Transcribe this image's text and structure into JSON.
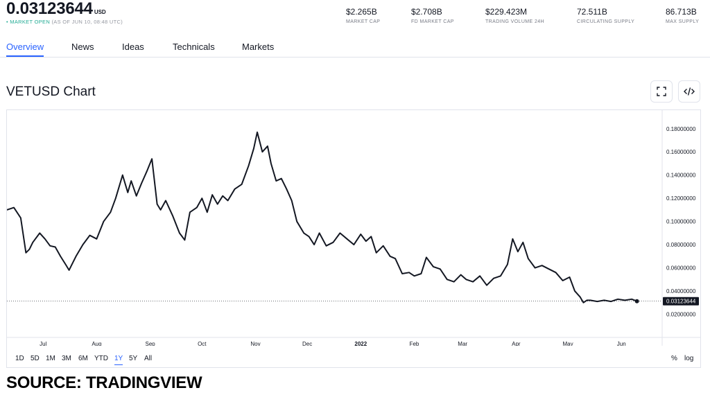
{
  "header": {
    "price": "0.03123644",
    "currency": "USD",
    "status_open": "• MARKET OPEN",
    "status_time": "(AS OF JUN 10, 08:48 UTC)",
    "stats": [
      {
        "value": "$2.265B",
        "label": "MARKET CAP"
      },
      {
        "value": "$2.708B",
        "label": "FD MARKET CAP"
      },
      {
        "value": "$229.423M",
        "label": "TRADING VOLUME 24H"
      },
      {
        "value": "72.511B",
        "label": "CIRCULATING SUPPLY"
      },
      {
        "value": "86.713B",
        "label": "MAX SUPPLY"
      }
    ]
  },
  "tabs": [
    "Overview",
    "News",
    "Ideas",
    "Technicals",
    "Markets"
  ],
  "active_tab": "Overview",
  "chart_title": "VETUSD Chart",
  "icons": {
    "fullscreen": "fullscreen-icon",
    "embed": "code-embed-icon"
  },
  "ranges": [
    "1D",
    "5D",
    "1M",
    "3M",
    "6M",
    "YTD",
    "1Y",
    "5Y",
    "All"
  ],
  "active_range": "1Y",
  "scale_options": [
    "%",
    "log"
  ],
  "source_text": "SOURCE: TRADINGVIEW",
  "colors": {
    "line": "#131722",
    "accent": "#2962ff",
    "market_open": "#22ab94",
    "last_price_tag": "#131722"
  },
  "chart_data": {
    "type": "line",
    "title": "VETUSD Chart",
    "series": [
      {
        "x": [
          "2021-06-10",
          "2021-06-14",
          "2021-06-18",
          "2021-06-21",
          "2021-06-23",
          "2021-06-25",
          "2021-06-29",
          "2021-07-02",
          "2021-07-05",
          "2021-07-08",
          "2021-07-11",
          "2021-07-14",
          "2021-07-16",
          "2021-07-20",
          "2021-07-24",
          "2021-07-28",
          "2021-08-01",
          "2021-08-05",
          "2021-08-09",
          "2021-08-12",
          "2021-08-16",
          "2021-08-19",
          "2021-08-21",
          "2021-08-24",
          "2021-08-27",
          "2021-08-30",
          "2021-09-02",
          "2021-09-05",
          "2021-09-07",
          "2021-09-10",
          "2021-09-14",
          "2021-09-18",
          "2021-09-21",
          "2021-09-24",
          "2021-09-28",
          "2021-10-01",
          "2021-10-04",
          "2021-10-07",
          "2021-10-10",
          "2021-10-13",
          "2021-10-16",
          "2021-10-20",
          "2021-10-24",
          "2021-10-28",
          "2021-10-31",
          "2021-11-02",
          "2021-11-05",
          "2021-11-08",
          "2021-11-10",
          "2021-11-13",
          "2021-11-16",
          "2021-11-19",
          "2021-11-22",
          "2021-11-25",
          "2021-11-29",
          "2021-12-02",
          "2021-12-05",
          "2021-12-08",
          "2021-12-12",
          "2021-12-16",
          "2021-12-20",
          "2021-12-24",
          "2021-12-28",
          "2022-01-01",
          "2022-01-04",
          "2022-01-07",
          "2022-01-10",
          "2022-01-14",
          "2022-01-18",
          "2022-01-21",
          "2022-01-25",
          "2022-01-29",
          "2022-02-01",
          "2022-02-05",
          "2022-02-08",
          "2022-02-12",
          "2022-02-16",
          "2022-02-20",
          "2022-02-24",
          "2022-02-28",
          "2022-03-03",
          "2022-03-07",
          "2022-03-11",
          "2022-03-15",
          "2022-03-19",
          "2022-03-23",
          "2022-03-27",
          "2022-03-30",
          "2022-04-02",
          "2022-04-05",
          "2022-04-08",
          "2022-04-12",
          "2022-04-16",
          "2022-04-20",
          "2022-04-24",
          "2022-04-28",
          "2022-05-02",
          "2022-05-05",
          "2022-05-08",
          "2022-05-10",
          "2022-05-12",
          "2022-05-14",
          "2022-05-18",
          "2022-05-22",
          "2022-05-26",
          "2022-05-30",
          "2022-06-03",
          "2022-06-07",
          "2022-06-10"
        ],
        "y": [
          0.11,
          0.112,
          0.103,
          0.073,
          0.076,
          0.082,
          0.09,
          0.085,
          0.079,
          0.078,
          0.07,
          0.063,
          0.058,
          0.07,
          0.08,
          0.088,
          0.085,
          0.1,
          0.108,
          0.12,
          0.14,
          0.125,
          0.135,
          0.122,
          0.133,
          0.143,
          0.154,
          0.115,
          0.11,
          0.118,
          0.105,
          0.09,
          0.084,
          0.108,
          0.112,
          0.12,
          0.108,
          0.123,
          0.115,
          0.122,
          0.118,
          0.128,
          0.132,
          0.148,
          0.163,
          0.177,
          0.16,
          0.165,
          0.15,
          0.135,
          0.137,
          0.128,
          0.118,
          0.1,
          0.09,
          0.087,
          0.08,
          0.09,
          0.079,
          0.082,
          0.09,
          0.085,
          0.08,
          0.089,
          0.083,
          0.087,
          0.073,
          0.079,
          0.07,
          0.068,
          0.055,
          0.056,
          0.053,
          0.055,
          0.069,
          0.061,
          0.059,
          0.05,
          0.048,
          0.054,
          0.05,
          0.048,
          0.053,
          0.045,
          0.051,
          0.053,
          0.063,
          0.085,
          0.074,
          0.082,
          0.068,
          0.06,
          0.062,
          0.059,
          0.056,
          0.049,
          0.052,
          0.04,
          0.035,
          0.03,
          0.032,
          0.032,
          0.031,
          0.032,
          0.031,
          0.033,
          0.032,
          0.033,
          0.03123644
        ],
        "last_value_label": "0.03123644"
      }
    ],
    "x_tick_labels": [
      {
        "date": "2021-07-01",
        "label": "Jul"
      },
      {
        "date": "2021-08-01",
        "label": "Aug"
      },
      {
        "date": "2021-09-01",
        "label": "Sep"
      },
      {
        "date": "2021-10-01",
        "label": "Oct"
      },
      {
        "date": "2021-11-01",
        "label": "Nov"
      },
      {
        "date": "2021-12-01",
        "label": "Dec"
      },
      {
        "date": "2022-01-01",
        "label": "2022"
      },
      {
        "date": "2022-02-01",
        "label": "Feb"
      },
      {
        "date": "2022-03-01",
        "label": "Mar"
      },
      {
        "date": "2022-04-01",
        "label": "Apr"
      },
      {
        "date": "2022-05-01",
        "label": "May"
      },
      {
        "date": "2022-06-01",
        "label": "Jun"
      }
    ],
    "y_ticks": [
      0.02,
      0.04,
      0.06,
      0.08,
      0.1,
      0.12,
      0.14,
      0.16,
      0.18
    ],
    "y_tick_labels": [
      "0.02000000",
      "0.04000000",
      "0.06000000",
      "0.08000000",
      "0.10000000",
      "0.12000000",
      "0.14000000",
      "0.16000000",
      "0.18000000"
    ],
    "xlim": [
      "2021-06-10",
      "2022-06-21"
    ],
    "ylim": [
      0.0,
      0.196
    ],
    "y_axis_side": "right",
    "grid": false,
    "legend": "none"
  }
}
